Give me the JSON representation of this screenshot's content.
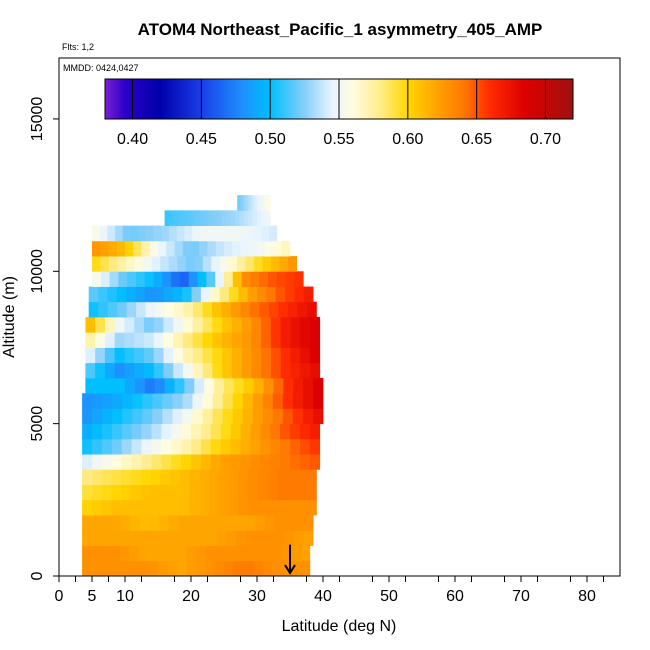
{
  "chart_data": {
    "type": "heatmap",
    "title": "ATOM4 Northeast_Pacific_1 asymmetry_405_AMP",
    "flights_label": "Flts: 1,2",
    "dates_label": "MMDD: 0424,0427",
    "xlabel": "Latitude (deg N)",
    "ylabel": "Altitude (m)",
    "xlim": [
      0,
      85
    ],
    "ylim": [
      0,
      17000
    ],
    "x_ticks": [
      0,
      5,
      10,
      20,
      30,
      40,
      50,
      60,
      70,
      80
    ],
    "x_ticks_minor": [
      2.5,
      7.5,
      12.5,
      17.5,
      22.5,
      27.5,
      32.5,
      37.5,
      42.5,
      47.5,
      52.5,
      57.5,
      62.5,
      67.5,
      72.5,
      77.5,
      82.5
    ],
    "y_ticks": [
      0,
      5000,
      10000,
      15000
    ],
    "colorbar": {
      "min": 0.38,
      "max": 0.72,
      "ticks": [
        0.4,
        0.45,
        0.5,
        0.55,
        0.6,
        0.65,
        0.7
      ],
      "tick_labels": [
        "0.40",
        "0.45",
        "0.50",
        "0.55",
        "0.60",
        "0.65",
        "0.70"
      ],
      "stops": [
        {
          "v": 0.38,
          "c": "#7a1fd6"
        },
        {
          "v": 0.395,
          "c": "#2a00c8"
        },
        {
          "v": 0.42,
          "c": "#0000aa"
        },
        {
          "v": 0.45,
          "c": "#1a3ee8"
        },
        {
          "v": 0.48,
          "c": "#1e90ff"
        },
        {
          "v": 0.5,
          "c": "#00bfff"
        },
        {
          "v": 0.525,
          "c": "#87cefa"
        },
        {
          "v": 0.545,
          "c": "#e8f4ff"
        },
        {
          "v": 0.56,
          "c": "#fffde0"
        },
        {
          "v": 0.58,
          "c": "#ffec8b"
        },
        {
          "v": 0.6,
          "c": "#ffd700"
        },
        {
          "v": 0.62,
          "c": "#ffa500"
        },
        {
          "v": 0.64,
          "c": "#ff7a00"
        },
        {
          "v": 0.66,
          "c": "#ff2a00"
        },
        {
          "v": 0.685,
          "c": "#dd0000"
        },
        {
          "v": 0.72,
          "c": "#a01010"
        }
      ]
    },
    "curtain": [
      {
        "alt": [
          0,
          500
        ],
        "lat": [
          3.5,
          38
        ],
        "v": [
          0.63,
          0.63,
          0.63,
          0.62,
          0.63,
          0.64,
          0.63,
          0.63
        ]
      },
      {
        "alt": [
          500,
          1000
        ],
        "lat": [
          3.5,
          38
        ],
        "v": [
          0.63,
          0.63,
          0.62,
          0.62,
          0.63,
          0.63,
          0.63,
          0.62
        ]
      },
      {
        "alt": [
          1000,
          1500
        ],
        "lat": [
          3.5,
          38.5
        ],
        "v": [
          0.62,
          0.62,
          0.62,
          0.62,
          0.62,
          0.63,
          0.63,
          0.62
        ]
      },
      {
        "alt": [
          1500,
          2000
        ],
        "lat": [
          3.5,
          38.5
        ],
        "v": [
          0.62,
          0.62,
          0.61,
          0.62,
          0.62,
          0.62,
          0.63,
          0.63
        ]
      },
      {
        "alt": [
          2000,
          2500
        ],
        "lat": [
          3.5,
          39
        ],
        "v": [
          0.6,
          0.61,
          0.61,
          0.61,
          0.62,
          0.63,
          0.63,
          0.63
        ]
      },
      {
        "alt": [
          2500,
          3000
        ],
        "lat": [
          3.5,
          39
        ],
        "v": [
          0.59,
          0.6,
          0.61,
          0.61,
          0.62,
          0.63,
          0.64,
          0.64
        ]
      },
      {
        "alt": [
          3000,
          3500
        ],
        "lat": [
          3.5,
          39
        ],
        "v": [
          0.58,
          0.59,
          0.6,
          0.61,
          0.62,
          0.63,
          0.64,
          0.64
        ]
      },
      {
        "alt": [
          3500,
          4000
        ],
        "lat": [
          3.5,
          39.5
        ],
        "v": [
          0.54,
          0.56,
          0.58,
          0.6,
          0.62,
          0.63,
          0.64,
          0.65
        ]
      },
      {
        "alt": [
          4000,
          4500
        ],
        "lat": [
          3.5,
          39.5
        ],
        "v": [
          0.5,
          0.52,
          0.55,
          0.57,
          0.6,
          0.62,
          0.64,
          0.66
        ]
      },
      {
        "alt": [
          4500,
          5000
        ],
        "lat": [
          3.5,
          39.5
        ],
        "v": [
          0.49,
          0.51,
          0.53,
          0.56,
          0.59,
          0.62,
          0.65,
          0.67
        ]
      },
      {
        "alt": [
          5000,
          5500
        ],
        "lat": [
          3.5,
          40
        ],
        "v": [
          0.48,
          0.5,
          0.52,
          0.55,
          0.59,
          0.62,
          0.65,
          0.68
        ]
      },
      {
        "alt": [
          5500,
          6000
        ],
        "lat": [
          3.5,
          40
        ],
        "v": [
          0.48,
          0.49,
          0.51,
          0.53,
          0.58,
          0.62,
          0.66,
          0.69
        ]
      },
      {
        "alt": [
          6000,
          6500
        ],
        "lat": [
          4,
          40
        ],
        "v": [
          0.5,
          0.5,
          0.47,
          0.52,
          0.58,
          0.61,
          0.66,
          0.69
        ]
      },
      {
        "alt": [
          6500,
          7000
        ],
        "lat": [
          4,
          39.5
        ],
        "v": [
          0.52,
          0.48,
          0.5,
          0.55,
          0.6,
          0.63,
          0.66,
          0.68
        ]
      },
      {
        "alt": [
          7000,
          7500
        ],
        "lat": [
          4,
          39.5
        ],
        "v": [
          0.55,
          0.5,
          0.52,
          0.57,
          0.6,
          0.63,
          0.66,
          0.69
        ]
      },
      {
        "alt": [
          7500,
          8000
        ],
        "lat": [
          4,
          39.5
        ],
        "v": [
          0.58,
          0.53,
          0.54,
          0.58,
          0.61,
          0.63,
          0.67,
          0.69
        ]
      },
      {
        "alt": [
          8000,
          8500
        ],
        "lat": [
          4,
          39.5
        ],
        "v": [
          0.62,
          0.55,
          0.52,
          0.56,
          0.6,
          0.63,
          0.67,
          0.69
        ]
      },
      {
        "alt": [
          8500,
          9000
        ],
        "lat": [
          4.5,
          39
        ],
        "v": [
          0.5,
          0.52,
          0.55,
          0.57,
          0.61,
          0.64,
          0.66,
          0.68
        ]
      },
      {
        "alt": [
          9000,
          9500
        ],
        "lat": [
          4.5,
          38.5
        ],
        "v": [
          0.52,
          0.5,
          0.48,
          0.5,
          0.57,
          0.62,
          0.65,
          0.67
        ]
      },
      {
        "alt": [
          9500,
          10000
        ],
        "lat": [
          5,
          37
        ],
        "v": [
          0.56,
          0.52,
          0.5,
          0.46,
          0.52,
          0.63,
          0.65,
          0.66
        ]
      },
      {
        "alt": [
          10000,
          10500
        ],
        "lat": [
          5,
          36
        ],
        "v": [
          0.6,
          0.57,
          0.54,
          0.52,
          0.56,
          0.6,
          0.63
        ]
      },
      {
        "alt": [
          10500,
          11000
        ],
        "lat": [
          5,
          35
        ],
        "v": [
          0.63,
          0.61,
          0.55,
          0.52,
          0.54,
          0.55,
          0.57
        ]
      },
      {
        "alt": [
          11000,
          11500
        ],
        "lat": [
          5,
          33
        ],
        "v": [
          0.56,
          0.52,
          0.53,
          0.55,
          0.55,
          0.54
        ]
      },
      {
        "alt": [
          11500,
          12000
        ],
        "lat": [
          16,
          32
        ],
        "v": [
          0.51,
          0.52,
          0.53,
          0.55
        ]
      },
      {
        "alt": [
          12000,
          12500
        ],
        "lat": [
          27,
          32
        ],
        "v": [
          0.52,
          0.56
        ]
      }
    ],
    "annotation": {
      "type": "arrow",
      "lat": 35,
      "alt_top": 700,
      "alt_bottom": 0,
      "label": "down arrow"
    }
  }
}
